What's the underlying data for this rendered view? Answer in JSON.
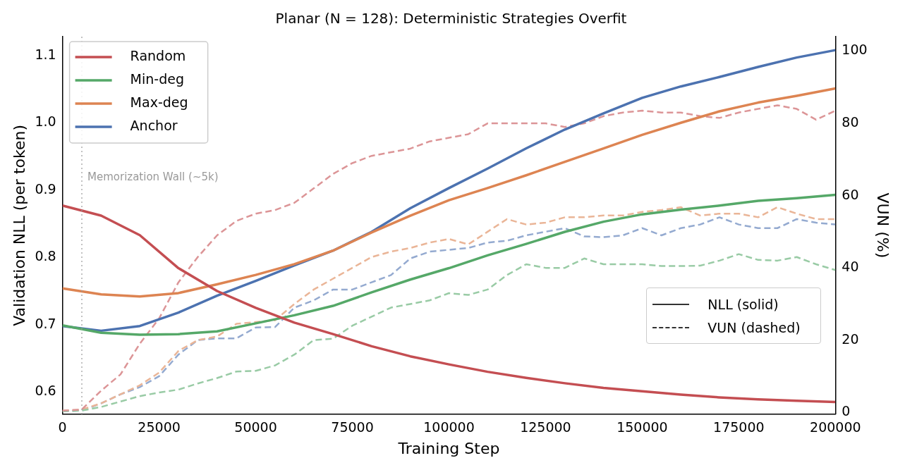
{
  "chart_data": {
    "type": "line",
    "title": "Planar (N = 128): Deterministic Strategies Overfit",
    "xlabel": "Training Step",
    "ylabel": "Validation NLL (per token)",
    "y2label": "VUN (%)",
    "xlim": [
      0,
      200000
    ],
    "xticks": [
      0,
      25000,
      50000,
      75000,
      100000,
      125000,
      150000,
      175000,
      200000
    ],
    "ylim": [
      0.567,
      1.128
    ],
    "yticks": [
      0.6,
      0.7,
      0.8,
      0.9,
      {
        "value": 1,
        "label": "1.0"
      },
      1.1
    ],
    "y2lim": [
      -0.5,
      104
    ],
    "y2ticks": [
      0,
      20,
      40,
      60,
      80,
      100
    ],
    "grid": false,
    "legend": "top left",
    "marker": "none",
    "ref_lines": [
      {
        "axis": "x",
        "value": 5000,
        "label": "Memorization Wall (~5k)",
        "color": "#999999",
        "line_style": "dotted"
      }
    ],
    "annotations": [
      "NLL (solid)",
      "VUN (dashed)"
    ],
    "series": [
      {
        "name": "Random",
        "color": "#c44e52",
        "line_style": "solid",
        "x": [
          0,
          10000,
          20000,
          30000,
          40000,
          50000,
          60000,
          70000,
          80000,
          90000,
          100000,
          110000,
          120000,
          130000,
          140000,
          150000,
          160000,
          170000,
          180000,
          190000,
          200000
        ],
        "values": [
          0.877,
          0.862,
          0.833,
          0.784,
          0.75,
          0.725,
          0.703,
          0.686,
          0.668,
          0.653,
          0.641,
          0.63,
          0.621,
          0.613,
          0.606,
          0.601,
          0.596,
          0.592,
          0.589,
          0.587,
          0.585
        ]
      },
      {
        "name": "Min-deg",
        "color": "#55a868",
        "line_style": "solid",
        "x": [
          0,
          10000,
          20000,
          30000,
          40000,
          50000,
          60000,
          70000,
          80000,
          90000,
          100000,
          110000,
          120000,
          130000,
          140000,
          150000,
          160000,
          170000,
          180000,
          190000,
          200000
        ],
        "values": [
          0.699,
          0.688,
          0.685,
          0.686,
          0.69,
          0.702,
          0.714,
          0.728,
          0.748,
          0.767,
          0.784,
          0.803,
          0.82,
          0.838,
          0.853,
          0.864,
          0.871,
          0.877,
          0.884,
          0.888,
          0.893
        ]
      },
      {
        "name": "Max-deg",
        "color": "#dd8452",
        "line_style": "solid",
        "x": [
          0,
          10000,
          20000,
          30000,
          40000,
          50000,
          60000,
          70000,
          80000,
          90000,
          100000,
          110000,
          120000,
          130000,
          140000,
          150000,
          160000,
          170000,
          180000,
          190000,
          200000
        ],
        "values": [
          0.754,
          0.745,
          0.742,
          0.747,
          0.76,
          0.774,
          0.79,
          0.81,
          0.837,
          0.862,
          0.885,
          0.903,
          0.922,
          0.942,
          0.962,
          0.982,
          1.0,
          1.017,
          1.03,
          1.04,
          1.051
        ]
      },
      {
        "name": "Anchor",
        "color": "#4c72b0",
        "line_style": "solid",
        "x": [
          0,
          10000,
          20000,
          30000,
          40000,
          50000,
          60000,
          70000,
          80000,
          90000,
          100000,
          110000,
          120000,
          130000,
          140000,
          150000,
          160000,
          170000,
          180000,
          190000,
          200000
        ],
        "values": [
          0.698,
          0.691,
          0.698,
          0.718,
          0.743,
          0.765,
          0.788,
          0.81,
          0.838,
          0.873,
          0.903,
          0.932,
          0.962,
          0.99,
          1.014,
          1.037,
          1.054,
          1.068,
          1.083,
          1.097,
          1.108
        ]
      },
      {
        "color": "#dc9597",
        "axis": "y2",
        "line_style": "dashed",
        "x": [
          0,
          5000,
          10000,
          15000,
          20000,
          25000,
          30000,
          35000,
          40000,
          45000,
          50000,
          55000,
          60000,
          65000,
          70000,
          75000,
          80000,
          85000,
          90000,
          95000,
          100000,
          105000,
          110000,
          115000,
          120000,
          125000,
          130000,
          135000,
          140000,
          145000,
          150000,
          155000,
          160000,
          165000,
          170000,
          175000,
          180000,
          185000,
          190000,
          195000,
          200000
        ],
        "values": [
          0.5,
          0.8,
          6,
          10.5,
          19,
          26,
          36,
          43,
          49,
          53,
          55,
          56,
          58,
          62,
          66,
          69,
          71,
          72,
          73,
          75,
          76,
          77,
          80,
          80,
          80,
          80,
          79,
          80,
          82,
          83,
          83.5,
          83,
          83,
          82,
          81.5,
          83,
          84,
          85,
          84,
          81,
          83.5
        ]
      },
      {
        "color": "#99cba5",
        "axis": "y2",
        "line_style": "dashed",
        "x": [
          0,
          5000,
          10000,
          15000,
          20000,
          25000,
          30000,
          35000,
          40000,
          45000,
          50000,
          55000,
          60000,
          65000,
          70000,
          75000,
          80000,
          85000,
          90000,
          95000,
          100000,
          105000,
          110000,
          115000,
          120000,
          125000,
          130000,
          135000,
          140000,
          145000,
          150000,
          155000,
          160000,
          165000,
          170000,
          175000,
          180000,
          185000,
          190000,
          195000,
          200000
        ],
        "values": [
          0.3,
          0.5,
          1.5,
          3,
          4.5,
          5.5,
          6.3,
          8,
          9.5,
          11.3,
          11.5,
          13,
          16,
          20,
          20.4,
          24,
          26.5,
          29,
          30,
          31,
          33,
          32.5,
          34,
          38,
          41,
          40,
          40,
          42.6,
          41,
          41,
          41,
          40.5,
          40.5,
          40.6,
          42,
          43.8,
          42.2,
          42,
          43,
          41,
          39.4
        ]
      },
      {
        "color": "#eab597",
        "axis": "y2",
        "line_style": "dashed",
        "x": [
          0,
          5000,
          10000,
          15000,
          20000,
          25000,
          30000,
          35000,
          40000,
          45000,
          50000,
          55000,
          60000,
          65000,
          70000,
          75000,
          80000,
          85000,
          90000,
          95000,
          100000,
          105000,
          110000,
          115000,
          120000,
          125000,
          130000,
          135000,
          140000,
          145000,
          150000,
          155000,
          160000,
          165000,
          170000,
          175000,
          180000,
          185000,
          190000,
          195000,
          200000
        ],
        "values": [
          0.5,
          0.8,
          2.5,
          5,
          7.5,
          11,
          17,
          20,
          21,
          24.5,
          25,
          25.5,
          30,
          34,
          37,
          40,
          43,
          44.5,
          45.5,
          47,
          48,
          46.5,
          50,
          53.5,
          52,
          52.5,
          54,
          54,
          54.5,
          54.5,
          55.5,
          56,
          56.8,
          54.5,
          55,
          55,
          54,
          56.8,
          55,
          53.5,
          53.5
        ]
      },
      {
        "color": "#94aad0",
        "axis": "y2",
        "line_style": "dashed",
        "x": [
          0,
          5000,
          10000,
          15000,
          20000,
          25000,
          30000,
          35000,
          40000,
          45000,
          50000,
          55000,
          60000,
          65000,
          70000,
          75000,
          80000,
          85000,
          90000,
          95000,
          100000,
          105000,
          110000,
          115000,
          120000,
          125000,
          130000,
          135000,
          140000,
          145000,
          150000,
          155000,
          160000,
          165000,
          170000,
          175000,
          180000,
          185000,
          190000,
          195000,
          200000
        ],
        "values": [
          0.3,
          0.5,
          2.5,
          5,
          7,
          10,
          16,
          20,
          20.5,
          20.5,
          23.5,
          23.6,
          29,
          31,
          34,
          34,
          36,
          38,
          42.6,
          44.5,
          45,
          45.5,
          47,
          47.5,
          49,
          50,
          51,
          48.7,
          48.5,
          49,
          51,
          49,
          51,
          52,
          54,
          52,
          51,
          51,
          53.5,
          52.5,
          52
        ]
      }
    ]
  }
}
